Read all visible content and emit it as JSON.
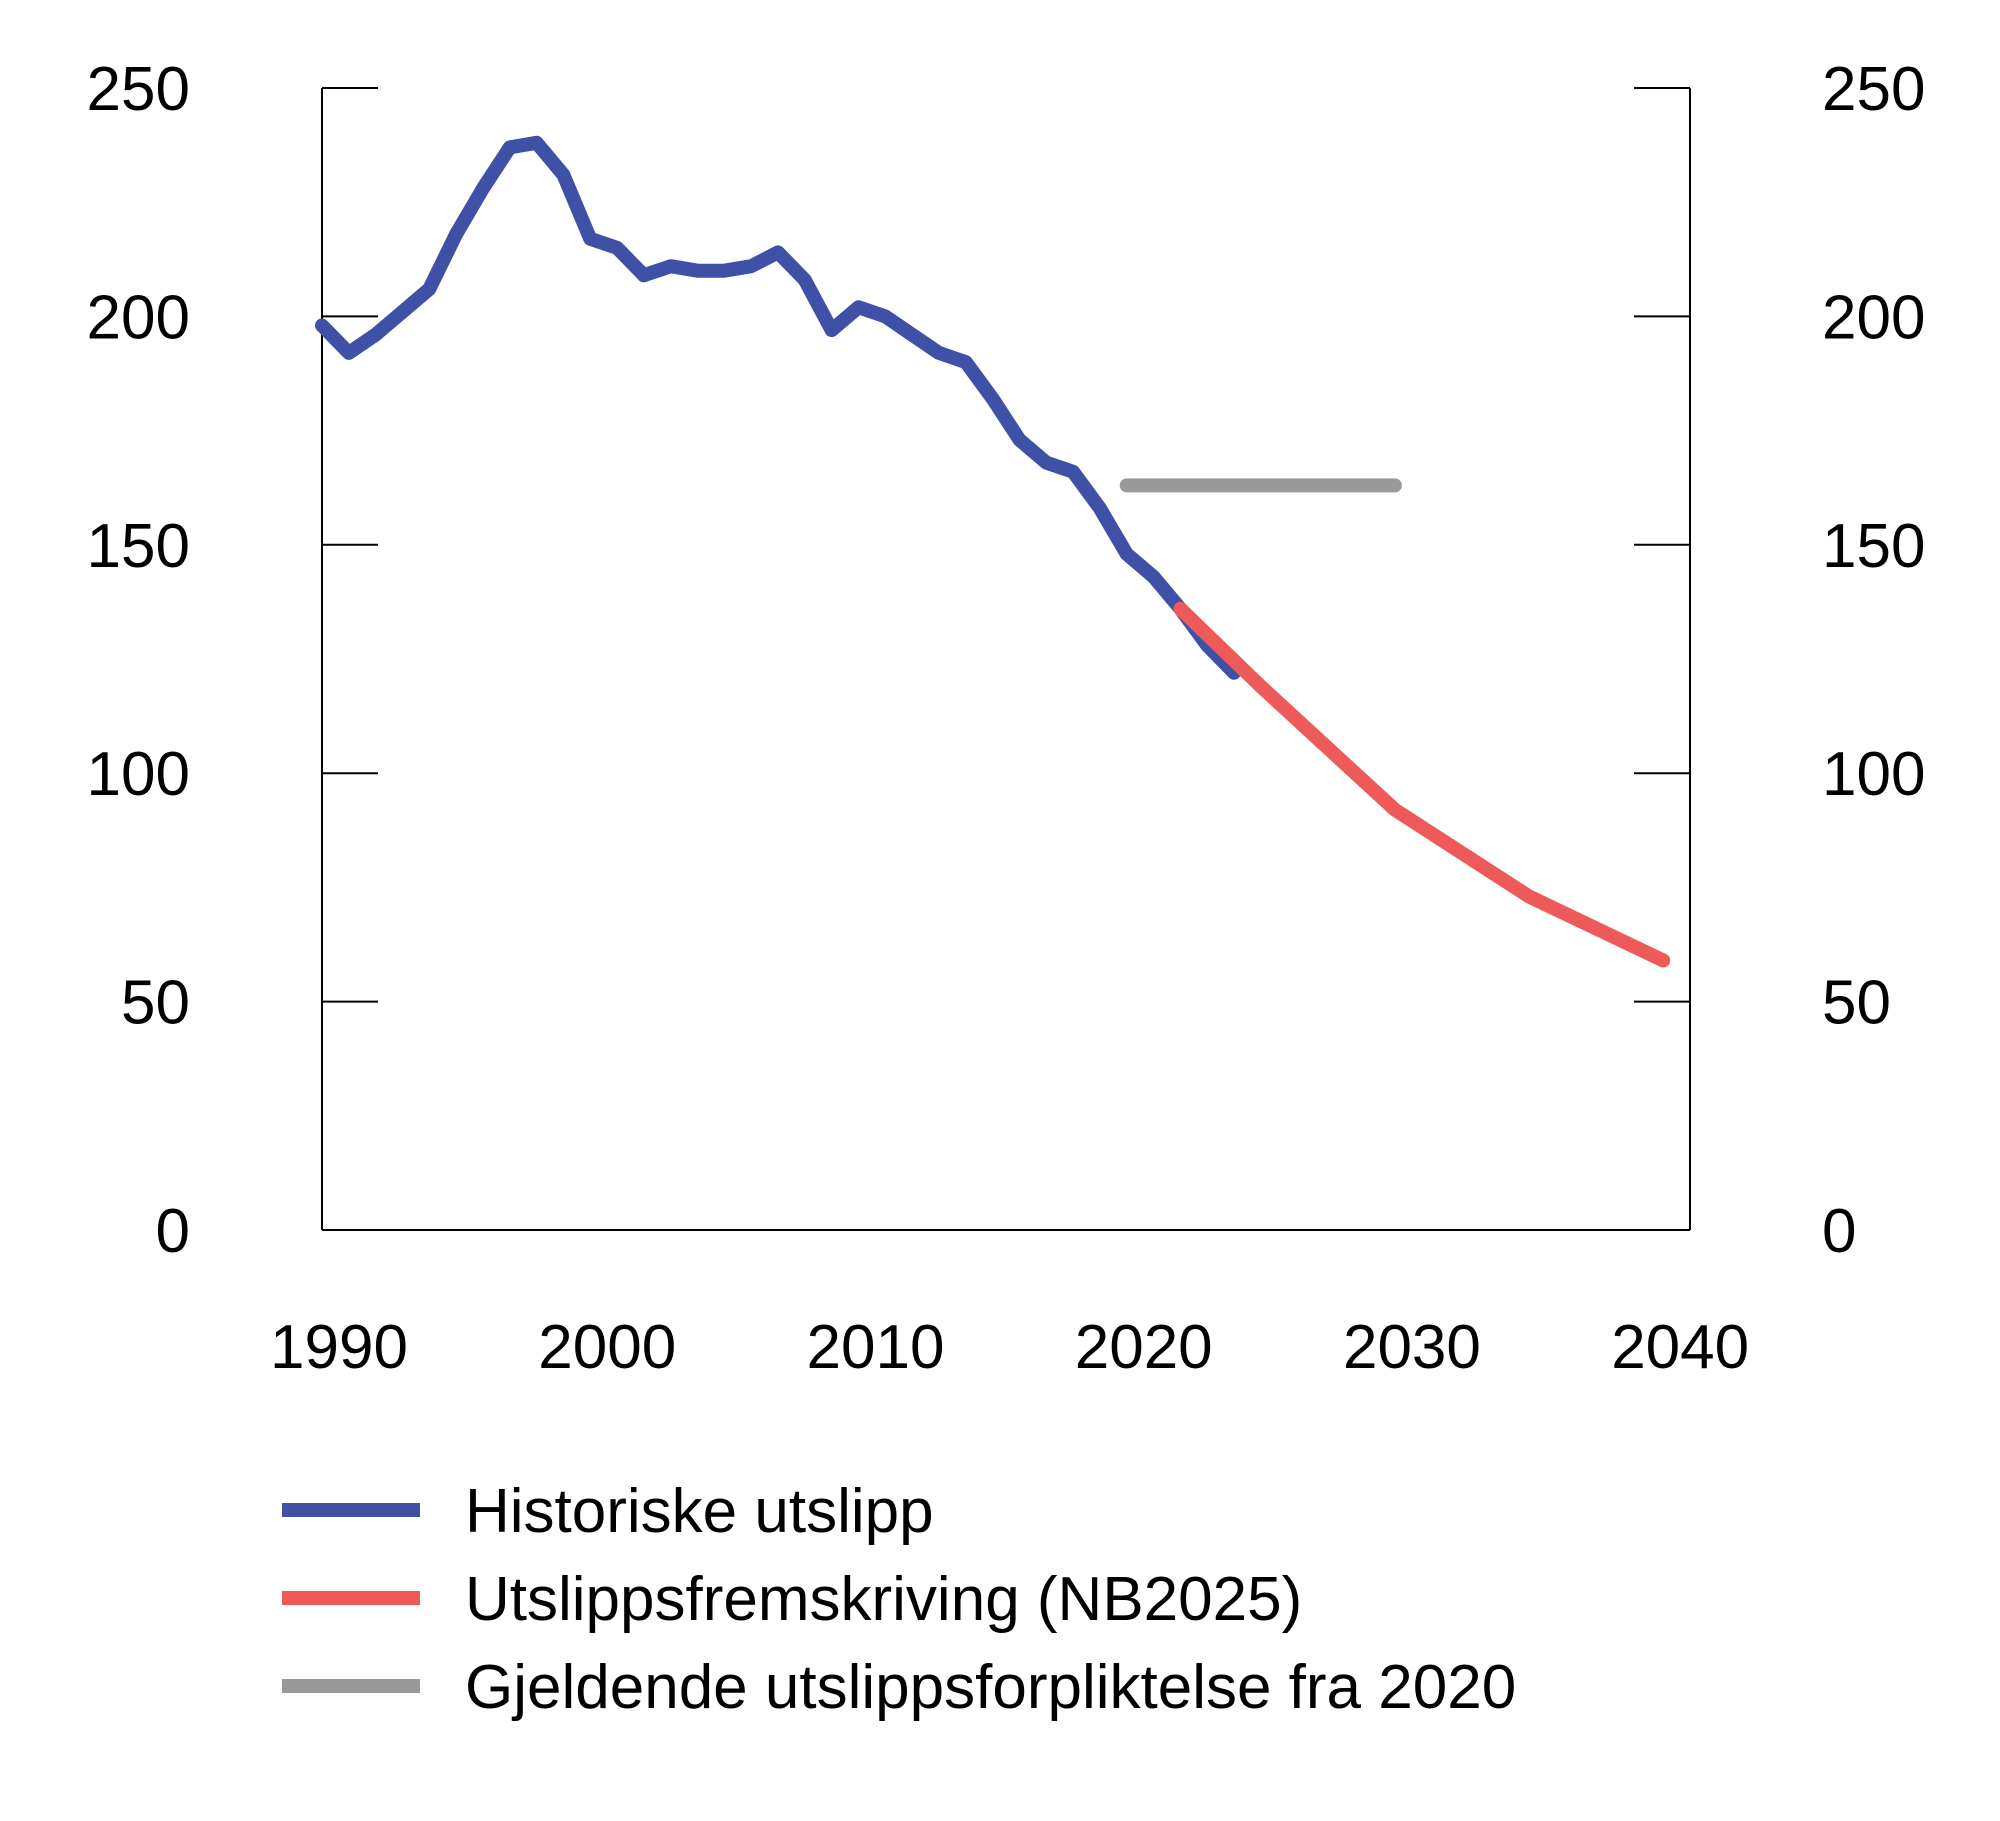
{
  "chart_data": {
    "type": "line",
    "title": "",
    "xlabel": "",
    "ylabel": "",
    "xlim": [
      1990,
      2041
    ],
    "ylim": [
      0,
      250
    ],
    "x_ticks": [
      "1990",
      "2000",
      "2010",
      "2020",
      "2030",
      "2040"
    ],
    "y_ticks_left": [
      "0",
      "50",
      "100",
      "150",
      "200",
      "250"
    ],
    "y_ticks_right": [
      "0",
      "50",
      "100",
      "150",
      "200",
      "250"
    ],
    "grid": false,
    "legend_position": "bottom",
    "series": [
      {
        "name": "Historiske utslipp",
        "color": "#3f51a6",
        "x": [
          1990,
          1991,
          1992,
          1993,
          1994,
          1995,
          1996,
          1997,
          1998,
          1999,
          2000,
          2001,
          2002,
          2003,
          2004,
          2005,
          2006,
          2007,
          2008,
          2009,
          2010,
          2011,
          2012,
          2013,
          2014,
          2015,
          2016,
          2017,
          2018,
          2019,
          2020,
          2021,
          2022,
          2023,
          2024
        ],
        "y": [
          198,
          192,
          196,
          201,
          206,
          218,
          228,
          237,
          238,
          231,
          217,
          215,
          209,
          211,
          210,
          210,
          211,
          214,
          208,
          197,
          202,
          200,
          196,
          192,
          190,
          182,
          173,
          168,
          166,
          158,
          148,
          143,
          136,
          128,
          122
        ]
      },
      {
        "name": "Utslippsfremskriving (NB2025)",
        "color": "#ee5a5a",
        "x": [
          2022,
          2025,
          2030,
          2035,
          2040
        ],
        "y": [
          136,
          119,
          92,
          73,
          59
        ]
      },
      {
        "name": "Gjeldende utslippsforpliktelse fra 2020",
        "color": "#999999",
        "x": [
          2020,
          2030
        ],
        "y": [
          163,
          163
        ]
      }
    ]
  }
}
